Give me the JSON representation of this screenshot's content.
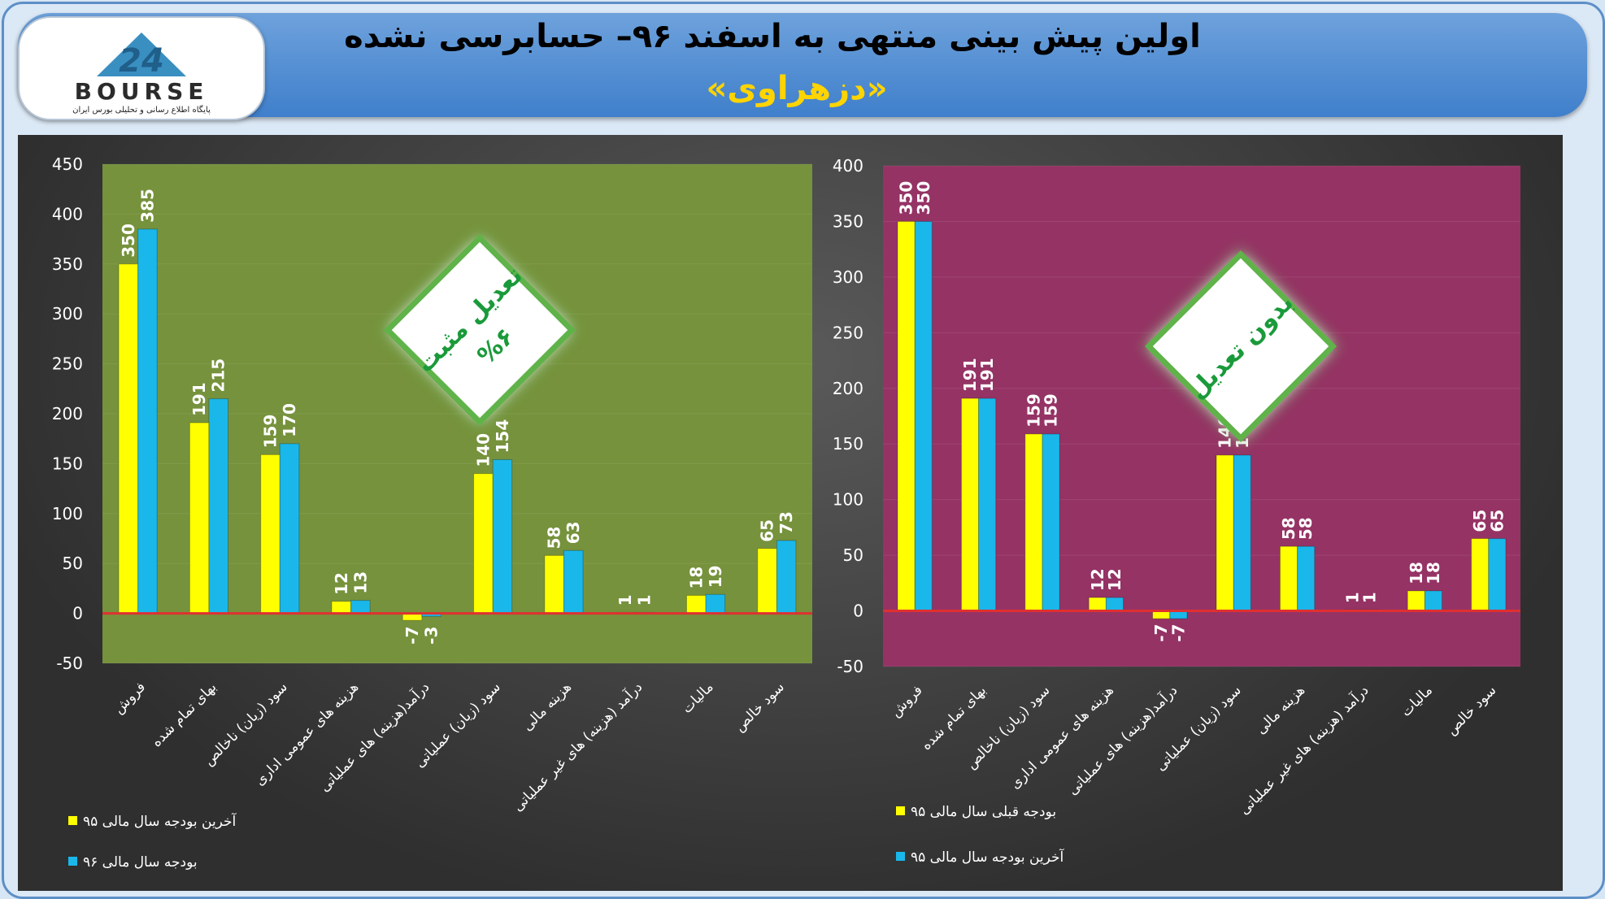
{
  "header": {
    "title": "اولین پیش بینی منتهی به اسفند ۹۶– حسابرسی نشده",
    "subtitle": "«دزهراوی»"
  },
  "logo": {
    "text": "BOURSE",
    "tagline": "پایگاه اطلاع رسانی و تحلیلی بورس ایران",
    "number": "24"
  },
  "colors": {
    "yellow": "#ffff00",
    "blue": "#1ab7ea",
    "zero_line": "#e03030",
    "green_bg": "#76923c",
    "magenta_bg": "#953365",
    "badge_text": "#1a9a3a"
  },
  "chart_data": [
    {
      "type": "bar",
      "panel": "left",
      "categories": [
        "فروش",
        "بهای تمام شده",
        "سود (زیان) ناخالص",
        "هزینه های عمومی اداری",
        "درآمد(هزینه) های عملیاتی",
        "سود (زیان) عملیاتی",
        "هزینه مالی",
        "درآمد (هزینه) های غیر عملیاتی",
        "مالیات",
        "سود خالص"
      ],
      "series": [
        {
          "name": "آخرین بودجه سال مالی ۹۵",
          "color": "#ffff00",
          "values": [
            350,
            191,
            159,
            12,
            -7,
            140,
            58,
            1,
            18,
            65
          ]
        },
        {
          "name": "بودجه سال مالی ۹۶",
          "color": "#1ab7ea",
          "values": [
            385,
            215,
            170,
            13,
            -3,
            154,
            63,
            1,
            19,
            73
          ]
        }
      ],
      "ylim": [
        -50,
        450
      ],
      "yticks": [
        -50,
        0,
        50,
        100,
        150,
        200,
        250,
        300,
        350,
        400,
        450
      ],
      "badge": {
        "line1": "تعدیل مثبت",
        "line2": "%۶"
      },
      "legend": "bottom-left"
    },
    {
      "type": "bar",
      "panel": "right",
      "categories": [
        "فروش",
        "بهای تمام شده",
        "سود (زیان) ناخالص",
        "هزینه های عمومی اداری",
        "درآمد(هزینه) های عملیاتی",
        "سود (زیان) عملیاتی",
        "هزینه مالی",
        "درآمد (هزینه) های غیر عملیاتی",
        "مالیات",
        "سود خالص"
      ],
      "series": [
        {
          "name": "بودجه قبلی سال مالی ۹۵",
          "color": "#ffff00",
          "values": [
            350,
            191,
            159,
            12,
            -7,
            140,
            58,
            1,
            18,
            65
          ]
        },
        {
          "name": "آخرین بودجه سال مالی ۹۵",
          "color": "#1ab7ea",
          "values": [
            350,
            191,
            159,
            12,
            -7,
            140,
            58,
            1,
            18,
            65
          ]
        }
      ],
      "ylim": [
        -50,
        400
      ],
      "yticks": [
        -50,
        0,
        50,
        100,
        150,
        200,
        250,
        300,
        350,
        400
      ],
      "badge": {
        "line1": "بدون تعدیل",
        "line2": ""
      },
      "legend": "bottom-left"
    }
  ]
}
